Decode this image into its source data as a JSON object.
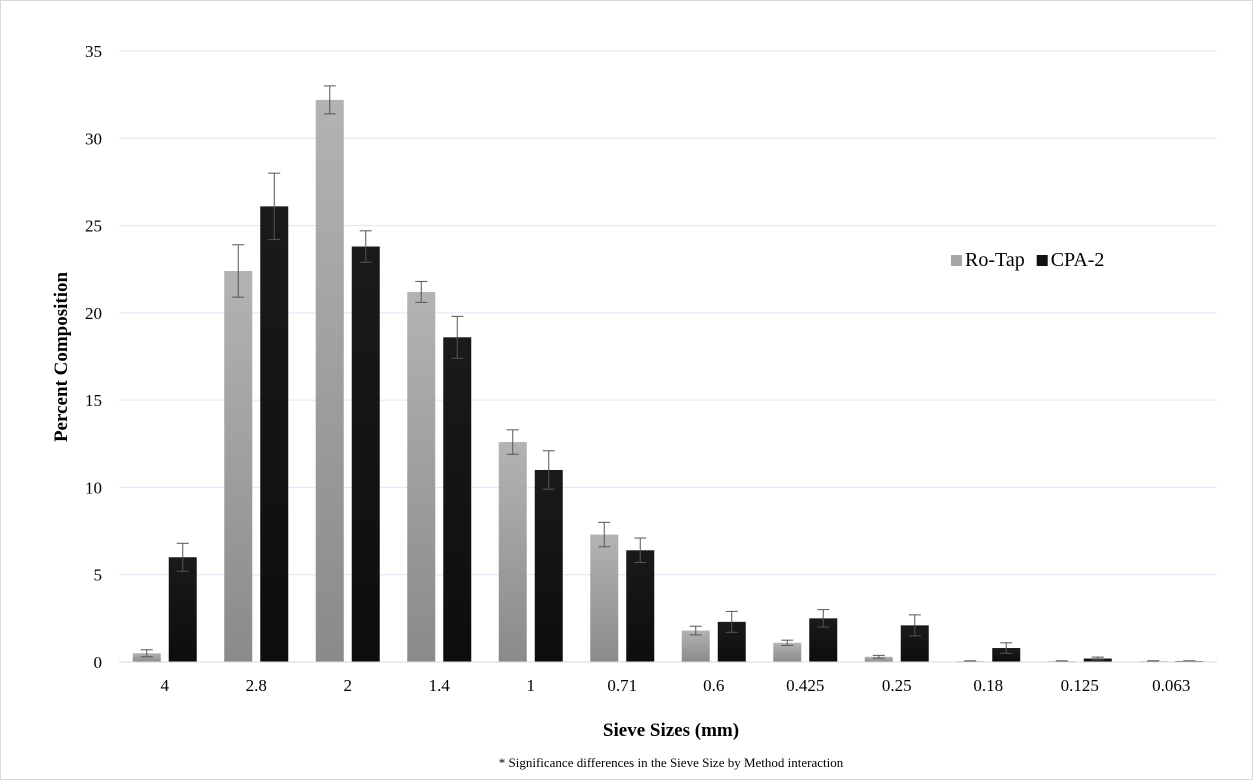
{
  "chart_data": {
    "type": "bar",
    "title": "",
    "xlabel": "Sieve Sizes (mm)",
    "ylabel": "Percent Composition",
    "footnote": "* Significance differences in the Sieve Size by Method interaction",
    "ylim": [
      0,
      35
    ],
    "yticks": [
      0,
      5,
      10,
      15,
      20,
      25,
      30,
      35
    ],
    "grid": "horizontal",
    "legend_position": "right",
    "categories": [
      "4",
      "2.8",
      "2",
      "1.4",
      "1",
      "0.71",
      "0.6",
      "0.425",
      "0.25",
      "0.18",
      "0.125",
      "0.063"
    ],
    "series": [
      {
        "name": "Ro-Tap",
        "color": "#a6a6a6",
        "values": [
          0.5,
          22.4,
          32.2,
          21.2,
          12.6,
          7.3,
          1.8,
          1.1,
          0.3,
          0.05,
          0.05,
          0.05
        ],
        "error": [
          0.2,
          1.5,
          0.8,
          0.6,
          0.7,
          0.7,
          0.25,
          0.15,
          0.08,
          0.02,
          0.02,
          0.02
        ]
      },
      {
        "name": "CPA-2",
        "color": "#111111",
        "values": [
          6.0,
          26.1,
          23.8,
          18.6,
          11.0,
          6.4,
          2.3,
          2.5,
          2.1,
          0.8,
          0.2,
          0.05
        ],
        "error": [
          0.8,
          1.9,
          0.9,
          1.2,
          1.1,
          0.7,
          0.6,
          0.5,
          0.6,
          0.3,
          0.08,
          0.02
        ]
      }
    ]
  }
}
